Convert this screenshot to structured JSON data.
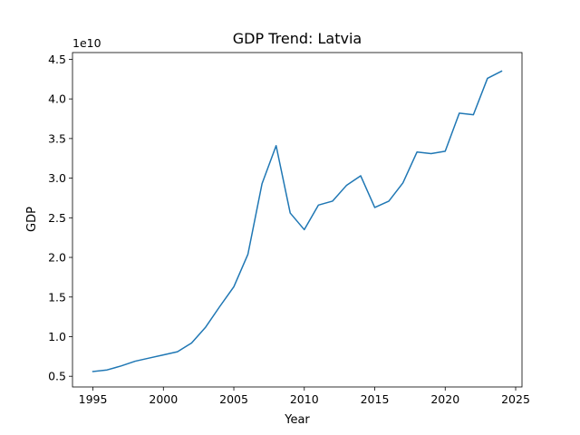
{
  "chart_data": {
    "type": "line",
    "title": "GDP Trend: Latvia",
    "xlabel": "Year",
    "ylabel": "GDP",
    "y_offset_label": "1e10",
    "xlim": [
      1993.55,
      2025.45
    ],
    "ylim": [
      3.65,
      45.85
    ],
    "x_ticks": [
      1995,
      2000,
      2005,
      2010,
      2015,
      2020,
      2025
    ],
    "y_ticks": [
      5,
      10,
      15,
      20,
      25,
      30,
      35,
      40,
      45
    ],
    "y_tick_labels": [
      "0.5",
      "1.0",
      "1.5",
      "2.0",
      "2.5",
      "3.0",
      "3.5",
      "4.0",
      "4.5"
    ],
    "grid": false,
    "legend": "none",
    "series": [
      {
        "color": "#1f77b4",
        "x": [
          1995,
          1996,
          1997,
          1998,
          1999,
          2000,
          2001,
          2002,
          2003,
          2004,
          2005,
          2006,
          2007,
          2008,
          2009,
          2010,
          2011,
          2012,
          2013,
          2014,
          2015,
          2016,
          2017,
          2018,
          2019,
          2020,
          2021,
          2022,
          2023,
          2024
        ],
        "y": [
          5.6,
          5.8,
          6.3,
          6.9,
          7.3,
          7.7,
          8.1,
          9.2,
          11.2,
          13.8,
          16.3,
          20.4,
          29.3,
          34.1,
          25.6,
          23.5,
          26.6,
          27.1,
          29.1,
          30.3,
          26.3,
          27.1,
          29.4,
          33.3,
          33.1,
          33.4,
          38.2,
          38.0,
          42.6,
          43.5
        ]
      }
    ]
  }
}
